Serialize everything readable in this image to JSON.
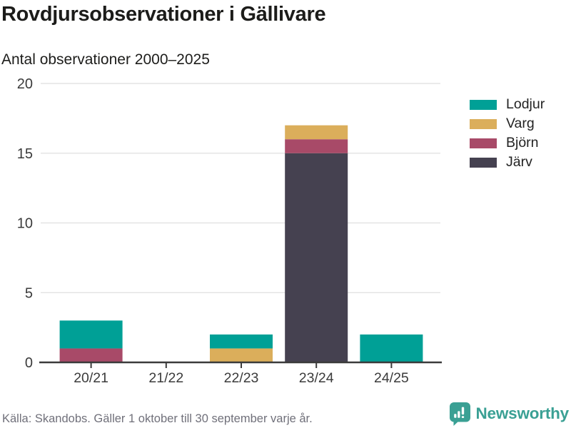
{
  "header": {
    "title": "Rovdjursobservationer i Gällivare",
    "subtitle": "Antal observationer 2000–2025"
  },
  "chart_data": {
    "type": "bar",
    "stacked": true,
    "title": "Rovdjursobservationer i Gällivare",
    "subtitle": "Antal observationer 2000–2025",
    "categories": [
      "20/21",
      "21/22",
      "22/23",
      "23/24",
      "24/25"
    ],
    "series": [
      {
        "name": "Lodjur",
        "color": "#00a096",
        "values": [
          2,
          0,
          1,
          0,
          2
        ]
      },
      {
        "name": "Varg",
        "color": "#dbae5b",
        "values": [
          0,
          0,
          1,
          1,
          0
        ]
      },
      {
        "name": "Björn",
        "color": "#a84a68",
        "values": [
          1,
          0,
          0,
          1,
          0
        ]
      },
      {
        "name": "Järv",
        "color": "#454150",
        "values": [
          0,
          0,
          0,
          15,
          0
        ]
      }
    ],
    "stack_order_bottom_to_top": [
      "Järv",
      "Björn",
      "Varg",
      "Lodjur"
    ],
    "totals": [
      3,
      0,
      2,
      17,
      2
    ],
    "xlabel": "",
    "ylabel": "Antal observationer",
    "ylim": [
      0,
      20
    ],
    "yticks": [
      0,
      5,
      10,
      15,
      20
    ],
    "grid": "horizontal-only",
    "legend_position": "right"
  },
  "colors": {
    "axis": "#3b3b3b",
    "grid": "#e4e4e4",
    "tick_label": "#3b3b3b",
    "brand_teal": "#3aa094"
  },
  "footer": {
    "source": "Källa: Skandobs. Gäller 1 oktober till 30 september varje år.",
    "brand": "Newsworthy"
  }
}
